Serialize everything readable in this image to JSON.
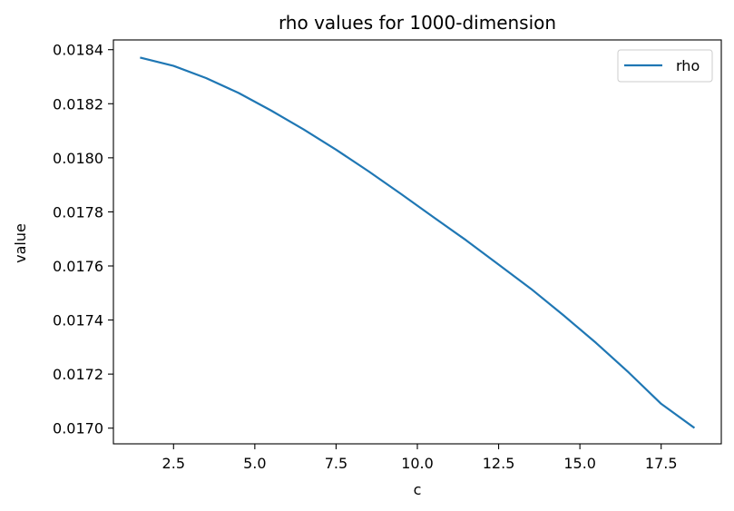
{
  "chart_data": {
    "type": "line",
    "title": "rho values for 1000-dimension",
    "xlabel": "c",
    "ylabel": "value",
    "xlim": [
      0.65,
      19.35
    ],
    "ylim": [
      0.016942,
      0.018436
    ],
    "xticks": [
      2.5,
      5.0,
      7.5,
      10.0,
      12.5,
      15.0,
      17.5
    ],
    "xtick_labels": [
      "2.5",
      "5.0",
      "7.5",
      "10.0",
      "12.5",
      "15.0",
      "17.5"
    ],
    "yticks": [
      0.017,
      0.0172,
      0.0174,
      0.0176,
      0.0178,
      0.018,
      0.0182,
      0.0184
    ],
    "ytick_labels": [
      "0.0170",
      "0.0172",
      "0.0174",
      "0.0176",
      "0.0178",
      "0.0180",
      "0.0182",
      "0.0184"
    ],
    "grid": false,
    "legend_position": "top-right",
    "series": [
      {
        "name": "rho",
        "color": "#1f77b4",
        "x": [
          1.5,
          2.5,
          3.5,
          4.5,
          5.5,
          6.5,
          7.5,
          8.5,
          9.5,
          10.5,
          11.5,
          12.5,
          13.5,
          14.5,
          15.5,
          16.5,
          17.5,
          18.5
        ],
        "y": [
          0.01837,
          0.01834,
          0.018295,
          0.01824,
          0.018175,
          0.018105,
          0.01803,
          0.01795,
          0.017866,
          0.01778,
          0.017695,
          0.017605,
          0.017515,
          0.017417,
          0.017315,
          0.017206,
          0.01709,
          0.017003
        ]
      }
    ]
  }
}
